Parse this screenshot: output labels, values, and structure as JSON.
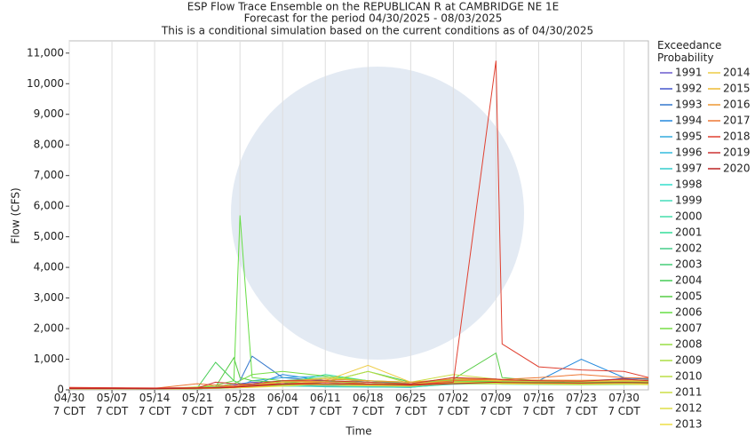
{
  "chart_data": {
    "type": "line",
    "title": "ESP Flow Trace Ensemble on the REPUBLICAN R at CAMBRIDGE NE 1E",
    "subtitle": "Forecast for the period 04/30/2025 - 08/03/2025",
    "note": "This is a conditional simulation based on the current conditions as of 04/30/2025",
    "x_label": "Time",
    "y_label": "Flow (CFS)",
    "legend_title": "Exceedance Probability",
    "grid": "x",
    "xlim": [
      0,
      95
    ],
    "xticks": [
      {
        "value": 0,
        "label": "04/30 7 CDT"
      },
      {
        "value": 7,
        "label": "05/07 7 CDT"
      },
      {
        "value": 14,
        "label": "05/14 7 CDT"
      },
      {
        "value": 21,
        "label": "05/21 7 CDT"
      },
      {
        "value": 28,
        "label": "05/28 7 CDT"
      },
      {
        "value": 35,
        "label": "06/04 7 CDT"
      },
      {
        "value": 42,
        "label": "06/11 7 CDT"
      },
      {
        "value": 49,
        "label": "06/18 7 CDT"
      },
      {
        "value": 56,
        "label": "06/25 7 CDT"
      },
      {
        "value": 63,
        "label": "07/02 7 CDT"
      },
      {
        "value": 70,
        "label": "07/09 7 CDT"
      },
      {
        "value": 77,
        "label": "07/16 7 CDT"
      },
      {
        "value": 84,
        "label": "07/23 7 CDT"
      },
      {
        "value": 91,
        "label": "07/30 7 CDT"
      }
    ],
    "ylim": [
      0,
      11400
    ],
    "yticks": [
      0,
      {
        "value": 1000,
        "label": "1,000"
      },
      {
        "value": 2000,
        "label": "2,000"
      },
      {
        "value": 3000,
        "label": "3,000"
      },
      {
        "value": 4000,
        "label": "4,000"
      },
      {
        "value": 5000,
        "label": "5,000"
      },
      {
        "value": 6000,
        "label": "6,000"
      },
      {
        "value": 7000,
        "label": "7,000"
      },
      {
        "value": 8000,
        "label": "8,000"
      },
      {
        "value": 9000,
        "label": "9,000"
      },
      {
        "value": 10000,
        "label": "10,000"
      },
      {
        "value": 11000,
        "label": "11,000"
      }
    ],
    "x": [
      0,
      7,
      14,
      21,
      24,
      27,
      28,
      30,
      35,
      42,
      49,
      56,
      63,
      70,
      71,
      77,
      84,
      91,
      95
    ],
    "series": [
      {
        "name": "1991",
        "color": "#6a5acd",
        "values": [
          60,
          50,
          40,
          60,
          80,
          150,
          200,
          250,
          200,
          150,
          120,
          100,
          300,
          250,
          240,
          220,
          250,
          300,
          280
        ]
      },
      {
        "name": "1992",
        "color": "#4455cc",
        "values": [
          50,
          40,
          30,
          50,
          60,
          100,
          120,
          200,
          150,
          120,
          100,
          80,
          250,
          300,
          280,
          250,
          230,
          380,
          350
        ]
      },
      {
        "name": "1993",
        "color": "#3377cc",
        "values": [
          70,
          60,
          50,
          80,
          100,
          200,
          300,
          1100,
          400,
          300,
          250,
          200,
          350,
          300,
          300,
          280,
          300,
          350,
          300
        ]
      },
      {
        "name": "1994",
        "color": "#2288dd",
        "values": [
          40,
          40,
          30,
          40,
          50,
          80,
          100,
          150,
          500,
          300,
          200,
          150,
          300,
          350,
          330,
          300,
          1000,
          400,
          350
        ]
      },
      {
        "name": "1995",
        "color": "#33aadd",
        "values": [
          50,
          45,
          40,
          60,
          70,
          120,
          150,
          300,
          400,
          450,
          300,
          200,
          300,
          280,
          270,
          250,
          260,
          280,
          300
        ]
      },
      {
        "name": "1996",
        "color": "#33bbdd",
        "values": [
          60,
          50,
          40,
          50,
          60,
          80,
          100,
          120,
          250,
          200,
          150,
          120,
          250,
          250,
          240,
          230,
          220,
          250,
          240
        ]
      },
      {
        "name": "1997",
        "color": "#33cccc",
        "values": [
          30,
          30,
          30,
          40,
          50,
          60,
          70,
          90,
          150,
          100,
          90,
          80,
          200,
          200,
          190,
          180,
          170,
          190,
          180
        ]
      },
      {
        "name": "1998",
        "color": "#33ddcc",
        "values": [
          40,
          35,
          30,
          40,
          50,
          70,
          80,
          100,
          180,
          300,
          150,
          120,
          220,
          220,
          210,
          200,
          190,
          200,
          210
        ]
      },
      {
        "name": "1999",
        "color": "#44ddbb",
        "values": [
          35,
          30,
          25,
          35,
          45,
          60,
          80,
          100,
          120,
          110,
          100,
          90,
          180,
          190,
          180,
          170,
          160,
          170,
          170
        ]
      },
      {
        "name": "2000",
        "color": "#44ddaa",
        "values": [
          50,
          40,
          35,
          50,
          60,
          90,
          110,
          130,
          200,
          180,
          160,
          140,
          260,
          260,
          250,
          240,
          230,
          240,
          230
        ]
      },
      {
        "name": "2001",
        "color": "#33dd99",
        "values": [
          30,
          30,
          30,
          40,
          50,
          70,
          90,
          110,
          200,
          500,
          300,
          200,
          250,
          240,
          230,
          220,
          210,
          220,
          210
        ]
      },
      {
        "name": "2002",
        "color": "#44cc88",
        "values": [
          40,
          35,
          30,
          45,
          60,
          80,
          100,
          120,
          300,
          400,
          250,
          200,
          280,
          280,
          270,
          260,
          250,
          260,
          250
        ]
      },
      {
        "name": "2003",
        "color": "#44cc77",
        "values": [
          50,
          40,
          30,
          40,
          50,
          70,
          90,
          100,
          150,
          150,
          130,
          120,
          230,
          230,
          220,
          210,
          200,
          210,
          200
        ]
      },
      {
        "name": "2004",
        "color": "#44cc55",
        "values": [
          60,
          50,
          40,
          60,
          900,
          300,
          200,
          150,
          200,
          250,
          600,
          250,
          300,
          280,
          270,
          260,
          250,
          270,
          260
        ]
      },
      {
        "name": "2005",
        "color": "#55cc44",
        "values": [
          40,
          40,
          30,
          50,
          100,
          1050,
          400,
          300,
          250,
          200,
          180,
          150,
          350,
          1200,
          400,
          300,
          280,
          290,
          300
        ]
      },
      {
        "name": "2006",
        "color": "#66dd44",
        "values": [
          50,
          45,
          40,
          60,
          150,
          300,
          5700,
          400,
          300,
          250,
          200,
          180,
          300,
          300,
          290,
          280,
          270,
          280,
          270
        ]
      },
      {
        "name": "2007",
        "color": "#77dd44",
        "values": [
          60,
          50,
          45,
          70,
          100,
          200,
          300,
          500,
          600,
          450,
          300,
          250,
          320,
          310,
          300,
          290,
          280,
          290,
          280
        ]
      },
      {
        "name": "2008",
        "color": "#99dd44",
        "values": [
          40,
          35,
          30,
          45,
          60,
          90,
          120,
          150,
          250,
          300,
          200,
          180,
          260,
          260,
          250,
          240,
          230,
          240,
          230
        ]
      },
      {
        "name": "2009",
        "color": "#aadd44",
        "values": [
          30,
          30,
          30,
          40,
          50,
          70,
          90,
          100,
          150,
          200,
          150,
          130,
          220,
          220,
          210,
          200,
          190,
          200,
          190
        ]
      },
      {
        "name": "2010",
        "color": "#bbdd44",
        "values": [
          50,
          40,
          35,
          50,
          70,
          100,
          130,
          150,
          300,
          250,
          600,
          200,
          400,
          300,
          290,
          280,
          270,
          280,
          270
        ]
      },
      {
        "name": "2011",
        "color": "#ccdd44",
        "values": [
          40,
          35,
          30,
          100,
          150,
          120,
          100,
          150,
          250,
          400,
          300,
          250,
          500,
          350,
          330,
          300,
          280,
          290,
          280
        ]
      },
      {
        "name": "2012",
        "color": "#dddd44",
        "values": [
          30,
          30,
          30,
          40,
          60,
          80,
          90,
          100,
          200,
          150,
          130,
          120,
          250,
          230,
          220,
          210,
          200,
          210,
          200
        ]
      },
      {
        "name": "2013",
        "color": "#eedd44",
        "values": [
          35,
          30,
          30,
          40,
          50,
          60,
          70,
          80,
          120,
          200,
          150,
          130,
          200,
          200,
          190,
          180,
          170,
          180,
          170
        ]
      },
      {
        "name": "2014",
        "color": "#eecc44",
        "values": [
          40,
          40,
          35,
          40,
          50,
          70,
          90,
          100,
          180,
          300,
          800,
          250,
          350,
          300,
          290,
          280,
          270,
          300,
          290
        ]
      },
      {
        "name": "2015",
        "color": "#eebb33",
        "values": [
          50,
          45,
          40,
          50,
          70,
          100,
          120,
          150,
          250,
          300,
          250,
          200,
          300,
          320,
          310,
          300,
          290,
          300,
          290
        ]
      },
      {
        "name": "2016",
        "color": "#ee9933",
        "values": [
          60,
          55,
          50,
          60,
          80,
          120,
          150,
          200,
          300,
          350,
          300,
          250,
          350,
          340,
          330,
          320,
          310,
          330,
          320
        ]
      },
      {
        "name": "2017",
        "color": "#ee7733",
        "values": [
          70,
          60,
          50,
          200,
          150,
          130,
          120,
          150,
          200,
          250,
          200,
          150,
          300,
          350,
          340,
          400,
          500,
          400,
          380
        ]
      },
      {
        "name": "2018",
        "color": "#e04030",
        "values": [
          80,
          70,
          60,
          70,
          80,
          100,
          120,
          150,
          200,
          200,
          180,
          170,
          250,
          10750,
          1500,
          750,
          650,
          600,
          400
        ]
      },
      {
        "name": "2019",
        "color": "#cc3333",
        "values": [
          50,
          45,
          40,
          60,
          250,
          200,
          180,
          200,
          300,
          300,
          250,
          200,
          400,
          350,
          330,
          300,
          280,
          350,
          300
        ]
      },
      {
        "name": "2020",
        "color": "#bb2222",
        "values": [
          40,
          40,
          35,
          50,
          60,
          80,
          100,
          120,
          180,
          200,
          180,
          150,
          200,
          250,
          240,
          230,
          220,
          240,
          230
        ]
      }
    ]
  }
}
